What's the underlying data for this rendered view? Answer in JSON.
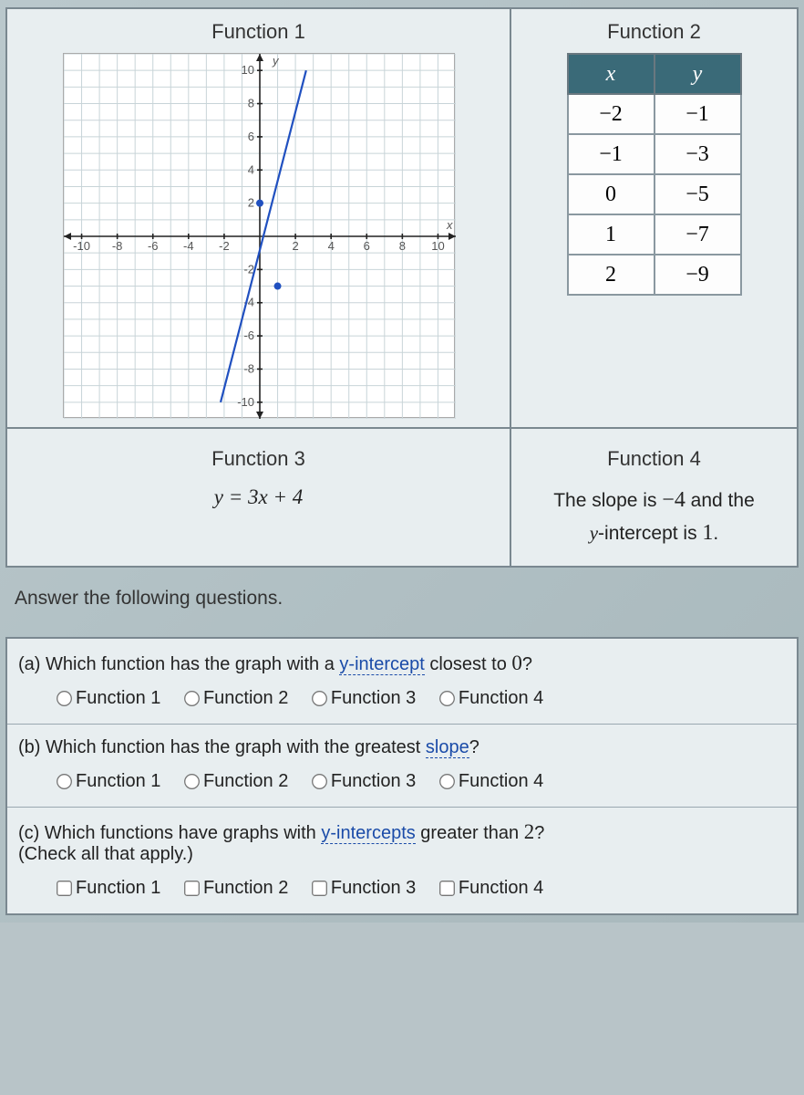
{
  "f1": {
    "title": "Function 1"
  },
  "f2": {
    "title": "Function 2",
    "head_x": "x",
    "head_y": "y",
    "rows": [
      {
        "x": "−2",
        "y": "−1"
      },
      {
        "x": "−1",
        "y": "−3"
      },
      {
        "x": "0",
        "y": "−5"
      },
      {
        "x": "1",
        "y": "−7"
      },
      {
        "x": "2",
        "y": "−9"
      }
    ]
  },
  "f3": {
    "title": "Function 3",
    "formula": "y = 3x + 4"
  },
  "f4": {
    "title": "Function 4",
    "line1a": "The slope is ",
    "line1b": "−4",
    "line1c": " and the",
    "line2a": "y",
    "line2b": "-intercept is ",
    "line2c": "1",
    "line2d": "."
  },
  "instr": "Answer the following questions.",
  "qa": {
    "prompt_a": "(a) Which function has the graph with a ",
    "term": "y-intercept",
    "prompt_b": " closest to ",
    "zero": "0",
    "prompt_c": "?"
  },
  "qb": {
    "prompt_a": "(b) Which function has the graph with the greatest ",
    "term": "slope",
    "prompt_b": "?"
  },
  "qc": {
    "prompt_a": "(c) Which functions have graphs with ",
    "term": "y-intercepts",
    "prompt_b": " greater than ",
    "two": "2",
    "prompt_c": "?",
    "sub": "(Check all that apply.)"
  },
  "opt1": "Function 1",
  "opt2": "Function 2",
  "opt3": "Function 3",
  "opt4": "Function 4",
  "graph": {
    "xlim": [
      -11,
      11
    ],
    "ylim": [
      -11,
      11
    ],
    "tick_step": 2,
    "grid_step": 1,
    "line_points": [
      [
        -2.2,
        -10
      ],
      [
        2.6,
        10
      ]
    ],
    "dots": [
      [
        0,
        2
      ],
      [
        1,
        -3
      ]
    ],
    "axis_color": "#222",
    "grid_color": "#c8d4d8",
    "line_color": "#2050c0",
    "y_label": "y",
    "x_label": "x"
  }
}
